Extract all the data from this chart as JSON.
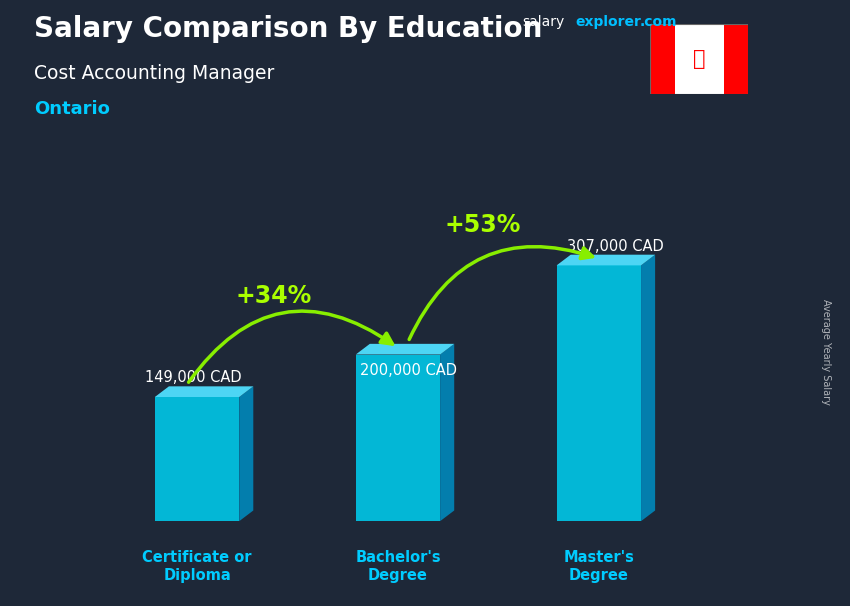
{
  "title_salary": "Salary Comparison By Education",
  "subtitle": "Cost Accounting Manager",
  "location": "Ontario",
  "categories": [
    "Certificate or\nDiploma",
    "Bachelor's\nDegree",
    "Master's\nDegree"
  ],
  "values": [
    149000,
    200000,
    307000
  ],
  "value_labels": [
    "149,000 CAD",
    "200,000 CAD",
    "307,000 CAD"
  ],
  "pct_labels": [
    "+34%",
    "+53%"
  ],
  "bar_color_face": "#00C8E8",
  "bar_color_top": "#50E0FF",
  "bar_color_side": "#0088BB",
  "bg_dark": "#1a2535",
  "title_color": "#FFFFFF",
  "subtitle_color": "#FFFFFF",
  "location_color": "#00CCFF",
  "value_label_color": "#FFFFFF",
  "pct_color": "#AAFF00",
  "xlabel_color": "#00CCFF",
  "arrow_color": "#88EE00",
  "site_salary_color": "#FFFFFF",
  "site_explorer_color": "#00BFFF",
  "site_com_color": "#FFFFFF",
  "site_text": "salary",
  "site_text2": "explorer",
  "site_text3": ".com",
  "ylabel_text": "Average Yearly Salary",
  "bar_width": 0.42,
  "ylim": [
    0,
    400000
  ],
  "bar_positions": [
    0,
    1,
    2
  ]
}
